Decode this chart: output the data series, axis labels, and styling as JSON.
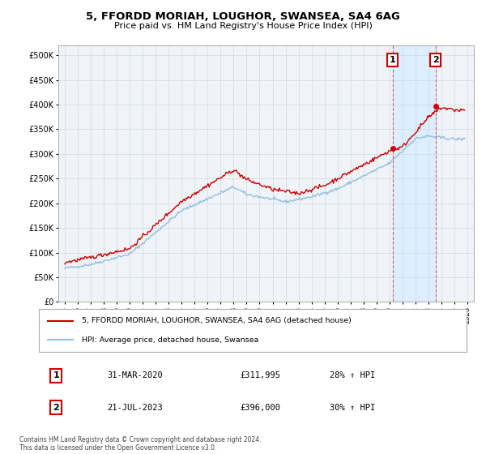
{
  "title": "5, FFORDD MORIAH, LOUGHOR, SWANSEA, SA4 6AG",
  "subtitle": "Price paid vs. HM Land Registry's House Price Index (HPI)",
  "legend_line1": "5, FFORDD MORIAH, LOUGHOR, SWANSEA, SA4 6AG (detached house)",
  "legend_line2": "HPI: Average price, detached house, Swansea",
  "annotation1_label": "1",
  "annotation1_date": "31-MAR-2020",
  "annotation1_price": "£311,995",
  "annotation1_hpi": "28% ↑ HPI",
  "annotation2_label": "2",
  "annotation2_date": "21-JUL-2023",
  "annotation2_price": "£396,000",
  "annotation2_hpi": "30% ↑ HPI",
  "footer": "Contains HM Land Registry data © Crown copyright and database right 2024.\nThis data is licensed under the Open Government Licence v3.0.",
  "hpi_color": "#92c0e0",
  "price_color": "#cc0000",
  "sale1_x": 2020.25,
  "sale1_y": 311995,
  "sale2_x": 2023.55,
  "sale2_y": 396000,
  "ylim": [
    0,
    520000
  ],
  "xlim": [
    1994.5,
    2026.5
  ],
  "yticks": [
    0,
    50000,
    100000,
    150000,
    200000,
    250000,
    300000,
    350000,
    400000,
    450000,
    500000
  ],
  "xticks": [
    1995,
    1996,
    1997,
    1998,
    1999,
    2000,
    2001,
    2002,
    2003,
    2004,
    2005,
    2006,
    2007,
    2008,
    2009,
    2010,
    2011,
    2012,
    2013,
    2014,
    2015,
    2016,
    2017,
    2018,
    2019,
    2020,
    2021,
    2022,
    2023,
    2024,
    2025,
    2026
  ],
  "bg_color": "#f0f4f8",
  "grid_color": "#d0d8e0",
  "span_color": "#ddeeff"
}
